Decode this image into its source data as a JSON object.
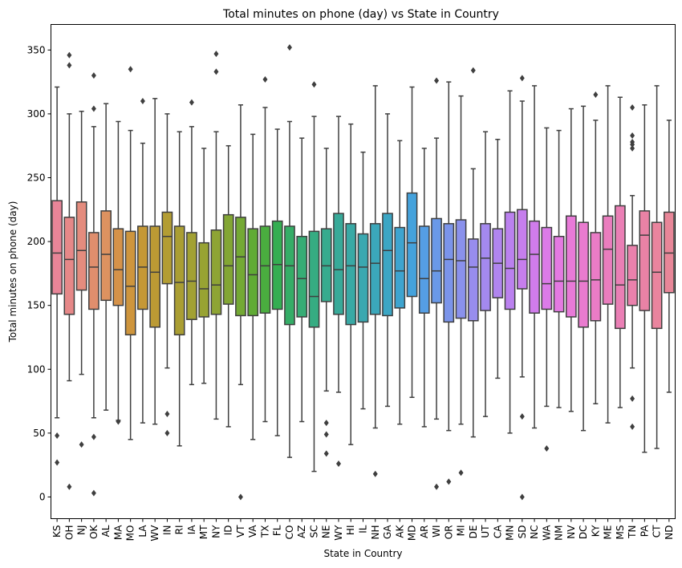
{
  "chart_data": {
    "type": "box",
    "title": "Total minutes on phone (day) vs State in Country",
    "xlabel": "State in Country",
    "ylabel": "Total minutes on phone (day)",
    "ylim": [
      -17,
      370
    ],
    "yticks": [
      0,
      50,
      100,
      150,
      200,
      250,
      300,
      350
    ],
    "grid": false,
    "legend": "none",
    "line_color": "#3f3f3f",
    "categories": [
      "KS",
      "OH",
      "NJ",
      "OK",
      "AL",
      "MA",
      "MO",
      "LA",
      "WV",
      "IN",
      "RI",
      "IA",
      "MT",
      "NY",
      "ID",
      "VT",
      "VA",
      "TX",
      "FL",
      "CO",
      "AZ",
      "SC",
      "NE",
      "WY",
      "HI",
      "IL",
      "NH",
      "GA",
      "AK",
      "MD",
      "AR",
      "WI",
      "OR",
      "MI",
      "DE",
      "UT",
      "CA",
      "MN",
      "SD",
      "NC",
      "WA",
      "NM",
      "NV",
      "DC",
      "KY",
      "ME",
      "MS",
      "TN",
      "PA",
      "CT",
      "ND"
    ],
    "boxes": [
      {
        "state": "KS",
        "whisker_low": 62,
        "q1": 159,
        "median": 191,
        "q3": 232,
        "whisker_high": 321,
        "outliers": [
          48,
          27
        ],
        "color": "#e88598"
      },
      {
        "state": "OH",
        "whisker_low": 91,
        "q1": 143,
        "median": 186,
        "q3": 219,
        "whisker_high": 300,
        "outliers": [
          346,
          338,
          8
        ],
        "color": "#e68888"
      },
      {
        "state": "NJ",
        "whisker_low": 96,
        "q1": 162,
        "median": 193,
        "q3": 231,
        "whisker_high": 302,
        "outliers": [
          41
        ],
        "color": "#e48c7e"
      },
      {
        "state": "OK",
        "whisker_low": 62,
        "q1": 147,
        "median": 180,
        "q3": 207,
        "whisker_high": 290,
        "outliers": [
          330,
          304,
          47,
          3
        ],
        "color": "#e08e6d"
      },
      {
        "state": "AL",
        "whisker_low": 68,
        "q1": 154,
        "median": 190,
        "q3": 224,
        "whisker_high": 308,
        "outliers": [],
        "color": "#dd9260"
      },
      {
        "state": "MA",
        "whisker_low": 60,
        "q1": 150,
        "median": 178,
        "q3": 210,
        "whisker_high": 294,
        "outliers": [
          59
        ],
        "color": "#d59249"
      },
      {
        "state": "MO",
        "whisker_low": 45,
        "q1": 127,
        "median": 165,
        "q3": 208,
        "whisker_high": 287,
        "outliers": [
          335
        ],
        "color": "#ce953d"
      },
      {
        "state": "LA",
        "whisker_low": 58,
        "q1": 147,
        "median": 180,
        "q3": 212,
        "whisker_high": 277,
        "outliers": [
          310
        ],
        "color": "#c59836"
      },
      {
        "state": "WV",
        "whisker_low": 57,
        "q1": 133,
        "median": 176,
        "q3": 212,
        "whisker_high": 312,
        "outliers": [],
        "color": "#bb9a34"
      },
      {
        "state": "IN",
        "whisker_low": 101,
        "q1": 167,
        "median": 204,
        "q3": 223,
        "whisker_high": 300,
        "outliers": [
          65,
          50
        ],
        "color": "#b39d33"
      },
      {
        "state": "RI",
        "whisker_low": 40,
        "q1": 127,
        "median": 168,
        "q3": 212,
        "whisker_high": 286,
        "outliers": [],
        "color": "#aa9e33"
      },
      {
        "state": "IA",
        "whisker_low": 88,
        "q1": 139,
        "median": 169,
        "q3": 207,
        "whisker_high": 290,
        "outliers": [
          309
        ],
        "color": "#a2a133"
      },
      {
        "state": "MT",
        "whisker_low": 89,
        "q1": 141,
        "median": 163,
        "q3": 199,
        "whisker_high": 273,
        "outliers": [],
        "color": "#98a333"
      },
      {
        "state": "NY",
        "whisker_low": 61,
        "q1": 143,
        "median": 166,
        "q3": 209,
        "whisker_high": 286,
        "outliers": [
          347,
          333
        ],
        "color": "#8ea434"
      },
      {
        "state": "ID",
        "whisker_low": 55,
        "q1": 151,
        "median": 181,
        "q3": 221,
        "whisker_high": 275,
        "outliers": [],
        "color": "#83a634"
      },
      {
        "state": "VT",
        "whisker_low": 88,
        "q1": 142,
        "median": 188,
        "q3": 219,
        "whisker_high": 307,
        "outliers": [
          0
        ],
        "color": "#74a934"
      },
      {
        "state": "VA",
        "whisker_low": 45,
        "q1": 142,
        "median": 174,
        "q3": 210,
        "whisker_high": 284,
        "outliers": [],
        "color": "#60ab34"
      },
      {
        "state": "TX",
        "whisker_low": 59,
        "q1": 144,
        "median": 181,
        "q3": 212,
        "whisker_high": 305,
        "outliers": [
          327
        ],
        "color": "#4aad3f"
      },
      {
        "state": "FL",
        "whisker_low": 48,
        "q1": 147,
        "median": 182,
        "q3": 216,
        "whisker_high": 288,
        "outliers": [],
        "color": "#34ae52"
      },
      {
        "state": "CO",
        "whisker_low": 31,
        "q1": 135,
        "median": 181,
        "q3": 212,
        "whisker_high": 294,
        "outliers": [
          352
        ],
        "color": "#35ad67"
      },
      {
        "state": "AZ",
        "whisker_low": 59,
        "q1": 141,
        "median": 171,
        "q3": 204,
        "whisker_high": 281,
        "outliers": [],
        "color": "#36ad75"
      },
      {
        "state": "SC",
        "whisker_low": 20,
        "q1": 133,
        "median": 157,
        "q3": 208,
        "whisker_high": 298,
        "outliers": [
          323
        ],
        "color": "#36ac82"
      },
      {
        "state": "NE",
        "whisker_low": 83,
        "q1": 153,
        "median": 181,
        "q3": 210,
        "whisker_high": 273,
        "outliers": [
          58,
          49,
          34
        ],
        "color": "#37ab8e"
      },
      {
        "state": "WY",
        "whisker_low": 82,
        "q1": 143,
        "median": 178,
        "q3": 222,
        "whisker_high": 298,
        "outliers": [
          26
        ],
        "color": "#38aa99"
      },
      {
        "state": "HI",
        "whisker_low": 41,
        "q1": 135,
        "median": 181,
        "q3": 214,
        "whisker_high": 292,
        "outliers": [],
        "color": "#39a9a5"
      },
      {
        "state": "IL",
        "whisker_low": 69,
        "q1": 137,
        "median": 180,
        "q3": 206,
        "whisker_high": 270,
        "outliers": [],
        "color": "#3aa8b0"
      },
      {
        "state": "NH",
        "whisker_low": 54,
        "q1": 143,
        "median": 183,
        "q3": 214,
        "whisker_high": 322,
        "outliers": [
          18
        ],
        "color": "#3ba7ba"
      },
      {
        "state": "GA",
        "whisker_low": 71,
        "q1": 142,
        "median": 193,
        "q3": 222,
        "whisker_high": 300,
        "outliers": [],
        "color": "#3ca6c4"
      },
      {
        "state": "AK",
        "whisker_low": 57,
        "q1": 148,
        "median": 177,
        "q3": 211,
        "whisker_high": 279,
        "outliers": [],
        "color": "#3ea4cf"
      },
      {
        "state": "MD",
        "whisker_low": 78,
        "q1": 157,
        "median": 199,
        "q3": 238,
        "whisker_high": 321,
        "outliers": [],
        "color": "#44a2dc"
      },
      {
        "state": "AR",
        "whisker_low": 55,
        "q1": 144,
        "median": 171,
        "q3": 212,
        "whisker_high": 273,
        "outliers": [],
        "color": "#559ee4"
      },
      {
        "state": "WI",
        "whisker_low": 61,
        "q1": 152,
        "median": 177,
        "q3": 218,
        "whisker_high": 281,
        "outliers": [
          326,
          8
        ],
        "color": "#6a99e8"
      },
      {
        "state": "OR",
        "whisker_low": 52,
        "q1": 137,
        "median": 186,
        "q3": 214,
        "whisker_high": 325,
        "outliers": [
          12
        ],
        "color": "#7b94ea"
      },
      {
        "state": "MI",
        "whisker_low": 57,
        "q1": 140,
        "median": 185,
        "q3": 217,
        "whisker_high": 314,
        "outliers": [
          19
        ],
        "color": "#8a91ec"
      },
      {
        "state": "DE",
        "whisker_low": 47,
        "q1": 138,
        "median": 180,
        "q3": 202,
        "whisker_high": 257,
        "outliers": [
          334
        ],
        "color": "#988dee"
      },
      {
        "state": "UT",
        "whisker_low": 63,
        "q1": 146,
        "median": 187,
        "q3": 214,
        "whisker_high": 286,
        "outliers": [],
        "color": "#a489ef"
      },
      {
        "state": "CA",
        "whisker_low": 93,
        "q1": 156,
        "median": 183,
        "q3": 210,
        "whisker_high": 280,
        "outliers": [],
        "color": "#b085ef"
      },
      {
        "state": "MN",
        "whisker_low": 50,
        "q1": 147,
        "median": 179,
        "q3": 223,
        "whisker_high": 318,
        "outliers": [],
        "color": "#bb81ef"
      },
      {
        "state": "SD",
        "whisker_low": 94,
        "q1": 163,
        "median": 186,
        "q3": 225,
        "whisker_high": 310,
        "outliers": [
          328,
          63,
          0
        ],
        "color": "#c67eed"
      },
      {
        "state": "NC",
        "whisker_low": 54,
        "q1": 144,
        "median": 190,
        "q3": 216,
        "whisker_high": 322,
        "outliers": [],
        "color": "#d07ceb"
      },
      {
        "state": "WA",
        "whisker_low": 71,
        "q1": 147,
        "median": 167,
        "q3": 211,
        "whisker_high": 289,
        "outliers": [
          38
        ],
        "color": "#db7be8"
      },
      {
        "state": "NM",
        "whisker_low": 70,
        "q1": 145,
        "median": 169,
        "q3": 204,
        "whisker_high": 287,
        "outliers": [],
        "color": "#e47ae2"
      },
      {
        "state": "NV",
        "whisker_low": 67,
        "q1": 141,
        "median": 169,
        "q3": 220,
        "whisker_high": 304,
        "outliers": [],
        "color": "#e87ad8"
      },
      {
        "state": "DC",
        "whisker_low": 52,
        "q1": 133,
        "median": 169,
        "q3": 215,
        "whisker_high": 306,
        "outliers": [],
        "color": "#e97bcf"
      },
      {
        "state": "KY",
        "whisker_low": 73,
        "q1": 138,
        "median": 170,
        "q3": 207,
        "whisker_high": 295,
        "outliers": [
          315
        ],
        "color": "#ea7cc6"
      },
      {
        "state": "ME",
        "whisker_low": 58,
        "q1": 151,
        "median": 194,
        "q3": 220,
        "whisker_high": 322,
        "outliers": [],
        "color": "#ea7dbe"
      },
      {
        "state": "MS",
        "whisker_low": 70,
        "q1": 132,
        "median": 166,
        "q3": 228,
        "whisker_high": 313,
        "outliers": [],
        "color": "#ea7fb5"
      },
      {
        "state": "TN",
        "whisker_low": 101,
        "q1": 150,
        "median": 170,
        "q3": 197,
        "whisker_high": 236,
        "outliers": [
          305,
          283,
          278,
          276,
          273,
          77,
          55
        ],
        "color": "#ea81ac"
      },
      {
        "state": "PA",
        "whisker_low": 35,
        "q1": 146,
        "median": 205,
        "q3": 224,
        "whisker_high": 307,
        "outliers": [],
        "color": "#e982a5"
      },
      {
        "state": "CT",
        "whisker_low": 38,
        "q1": 132,
        "median": 176,
        "q3": 215,
        "whisker_high": 322,
        "outliers": [],
        "color": "#e9849e"
      },
      {
        "state": "ND",
        "whisker_low": 82,
        "q1": 160,
        "median": 191,
        "q3": 223,
        "whisker_high": 295,
        "outliers": [],
        "color": "#e88698"
      }
    ]
  }
}
